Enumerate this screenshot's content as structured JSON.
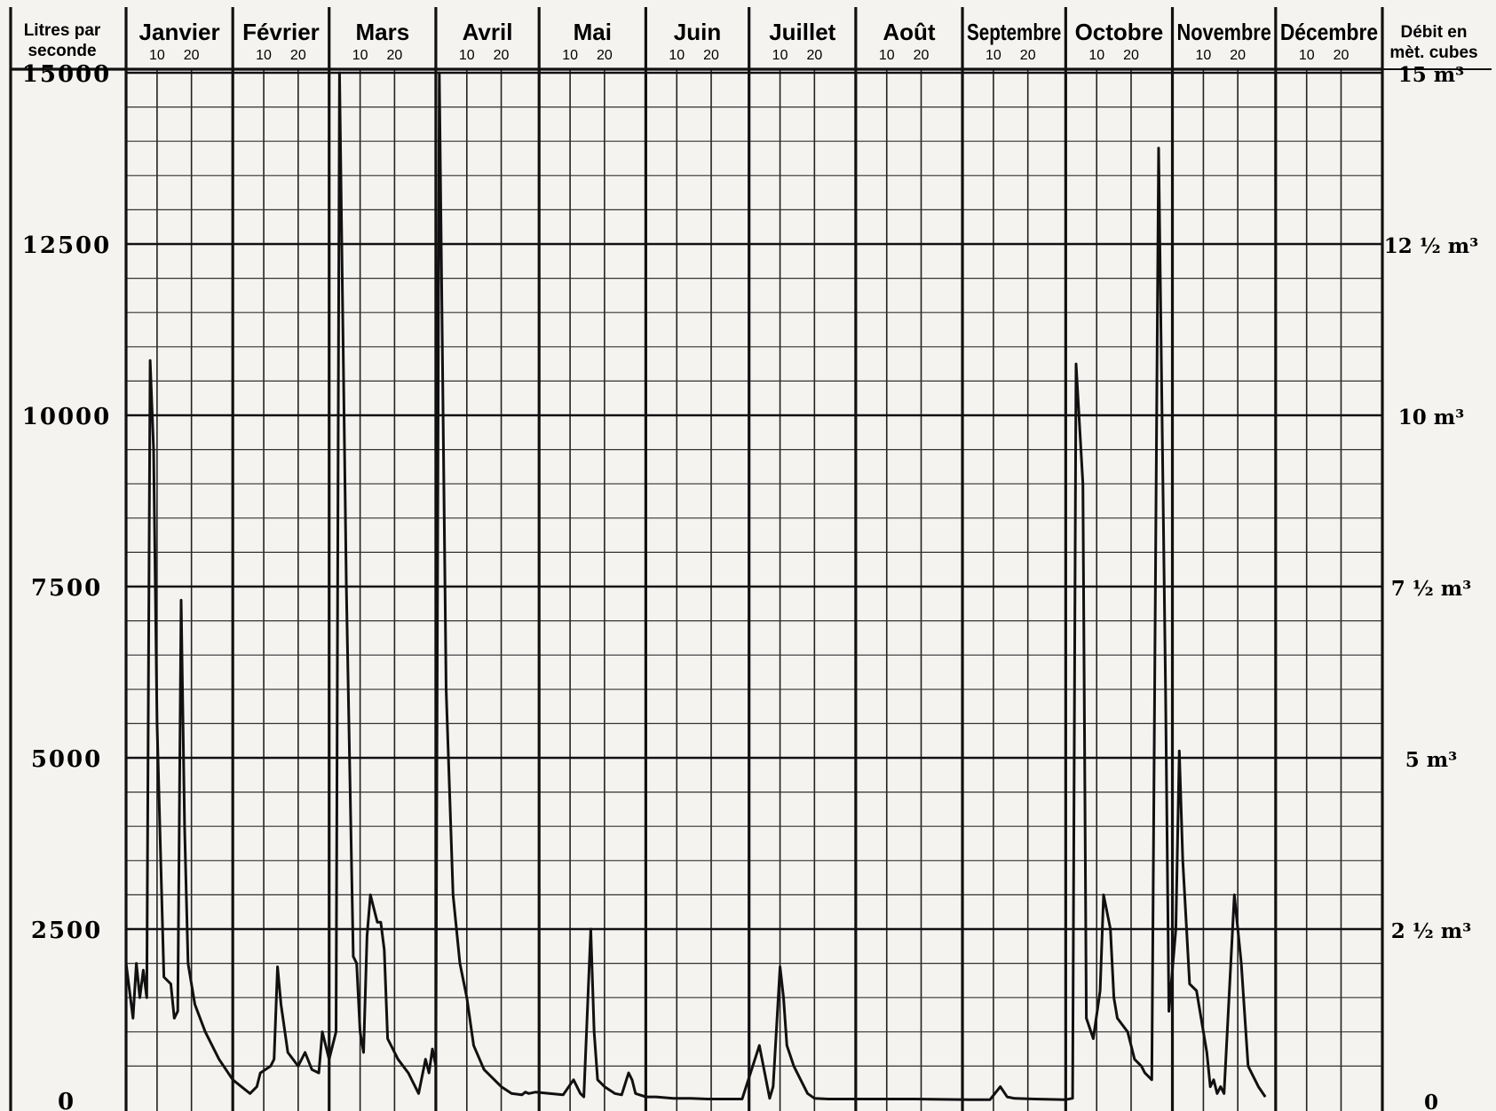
{
  "chart_data": {
    "type": "line",
    "left_axis_title": [
      "Litres par",
      "seconde"
    ],
    "right_axis_title": [
      "Débit en",
      "mèt. cubes"
    ],
    "months": [
      "Janvier",
      "Février",
      "Mars",
      "Avril",
      "Mai",
      "Juin",
      "Juillet",
      "Août",
      "Septembre",
      "Octobre",
      "Novembre",
      "Décembre"
    ],
    "day_ticks": [
      "10",
      "20"
    ],
    "y_ticks_left": [
      {
        "value": 15000,
        "label": "15000"
      },
      {
        "value": 12500,
        "label": "12500"
      },
      {
        "value": 10000,
        "label": "10000"
      },
      {
        "value": 7500,
        "label": "7500"
      },
      {
        "value": 5000,
        "label": "5000"
      },
      {
        "value": 2500,
        "label": "2500"
      },
      {
        "value": 0,
        "label": "0"
      }
    ],
    "y_ticks_right": [
      {
        "value": 15000,
        "label": "15 m³"
      },
      {
        "value": 12500,
        "label": "12 ½ m³"
      },
      {
        "value": 10000,
        "label": "10 m³"
      },
      {
        "value": 7500,
        "label": "7 ½ m³"
      },
      {
        "value": 5000,
        "label": "5 m³"
      },
      {
        "value": 2500,
        "label": "2 ½ m³"
      },
      {
        "value": 0,
        "label": "0"
      }
    ],
    "ylim": [
      0,
      15000
    ],
    "x_unit": "day of year",
    "xlim": [
      1,
      365
    ],
    "grid": true,
    "series": [
      {
        "points": [
          [
            1,
            2000
          ],
          [
            3,
            1200
          ],
          [
            4,
            2000
          ],
          [
            5,
            1500
          ],
          [
            6,
            1900
          ],
          [
            7,
            1500
          ],
          [
            8,
            10800
          ],
          [
            9,
            9500
          ],
          [
            10,
            5500
          ],
          [
            12,
            1800
          ],
          [
            14,
            1700
          ],
          [
            15,
            1200
          ],
          [
            16,
            1300
          ],
          [
            17,
            7300
          ],
          [
            18,
            4000
          ],
          [
            19,
            2000
          ],
          [
            21,
            1400
          ],
          [
            24,
            1000
          ],
          [
            28,
            600
          ],
          [
            32,
            300
          ],
          [
            37,
            100
          ],
          [
            39,
            200
          ],
          [
            40,
            400
          ],
          [
            43,
            500
          ],
          [
            44,
            600
          ],
          [
            45,
            1950
          ],
          [
            46,
            1400
          ],
          [
            48,
            700
          ],
          [
            51,
            500
          ],
          [
            53,
            700
          ],
          [
            55,
            450
          ],
          [
            57,
            400
          ],
          [
            58,
            1000
          ],
          [
            60,
            600
          ],
          [
            62,
            1000
          ],
          [
            63,
            15000
          ],
          [
            65,
            7500
          ],
          [
            67,
            2100
          ],
          [
            68,
            2000
          ],
          [
            69,
            1000
          ],
          [
            70,
            700
          ],
          [
            71,
            2400
          ],
          [
            72,
            3000
          ],
          [
            73,
            2800
          ],
          [
            74,
            2600
          ],
          [
            75,
            2600
          ],
          [
            76,
            2200
          ],
          [
            77,
            900
          ],
          [
            80,
            600
          ],
          [
            83,
            400
          ],
          [
            86,
            100
          ],
          [
            88,
            600
          ],
          [
            89,
            400
          ],
          [
            90,
            750
          ],
          [
            91,
            500
          ],
          [
            92,
            15000
          ],
          [
            94,
            6000
          ],
          [
            96,
            3000
          ],
          [
            98,
            2000
          ],
          [
            100,
            1500
          ],
          [
            102,
            800
          ],
          [
            105,
            450
          ],
          [
            110,
            200
          ],
          [
            113,
            100
          ],
          [
            116,
            80
          ],
          [
            117,
            120
          ],
          [
            118,
            100
          ],
          [
            120,
            120
          ],
          [
            124,
            100
          ],
          [
            128,
            80
          ],
          [
            131,
            300
          ],
          [
            133,
            100
          ],
          [
            134,
            50
          ],
          [
            136,
            2500
          ],
          [
            137,
            1000
          ],
          [
            138,
            300
          ],
          [
            140,
            200
          ],
          [
            143,
            100
          ],
          [
            145,
            80
          ],
          [
            147,
            400
          ],
          [
            148,
            300
          ],
          [
            149,
            100
          ],
          [
            152,
            50
          ],
          [
            155,
            50
          ],
          [
            160,
            30
          ],
          [
            165,
            30
          ],
          [
            170,
            20
          ],
          [
            180,
            20
          ],
          [
            185,
            800
          ],
          [
            188,
            30
          ],
          [
            189,
            200
          ],
          [
            191,
            1950
          ],
          [
            192,
            1500
          ],
          [
            193,
            800
          ],
          [
            195,
            500
          ],
          [
            197,
            300
          ],
          [
            199,
            100
          ],
          [
            201,
            30
          ],
          [
            205,
            20
          ],
          [
            215,
            20
          ],
          [
            230,
            20
          ],
          [
            246,
            10
          ],
          [
            252,
            10
          ],
          [
            255,
            200
          ],
          [
            257,
            50
          ],
          [
            259,
            30
          ],
          [
            265,
            20
          ],
          [
            274,
            10
          ],
          [
            276,
            30
          ],
          [
            277,
            10750
          ],
          [
            279,
            9000
          ],
          [
            280,
            1200
          ],
          [
            282,
            900
          ],
          [
            284,
            1600
          ],
          [
            285,
            3000
          ],
          [
            287,
            2500
          ],
          [
            288,
            1500
          ],
          [
            289,
            1200
          ],
          [
            292,
            1000
          ],
          [
            294,
            600
          ],
          [
            296,
            500
          ],
          [
            297,
            400
          ],
          [
            299,
            300
          ],
          [
            301,
            13900
          ],
          [
            303,
            6000
          ],
          [
            304,
            1300
          ],
          [
            306,
            2500
          ],
          [
            307,
            5100
          ],
          [
            308,
            3500
          ],
          [
            310,
            1700
          ],
          [
            312,
            1600
          ],
          [
            315,
            700
          ],
          [
            316,
            200
          ],
          [
            317,
            300
          ],
          [
            318,
            100
          ],
          [
            319,
            200
          ],
          [
            320,
            100
          ],
          [
            323,
            3000
          ],
          [
            325,
            2000
          ],
          [
            327,
            500
          ],
          [
            330,
            200
          ],
          [
            332,
            50
          ]
        ]
      }
    ]
  }
}
